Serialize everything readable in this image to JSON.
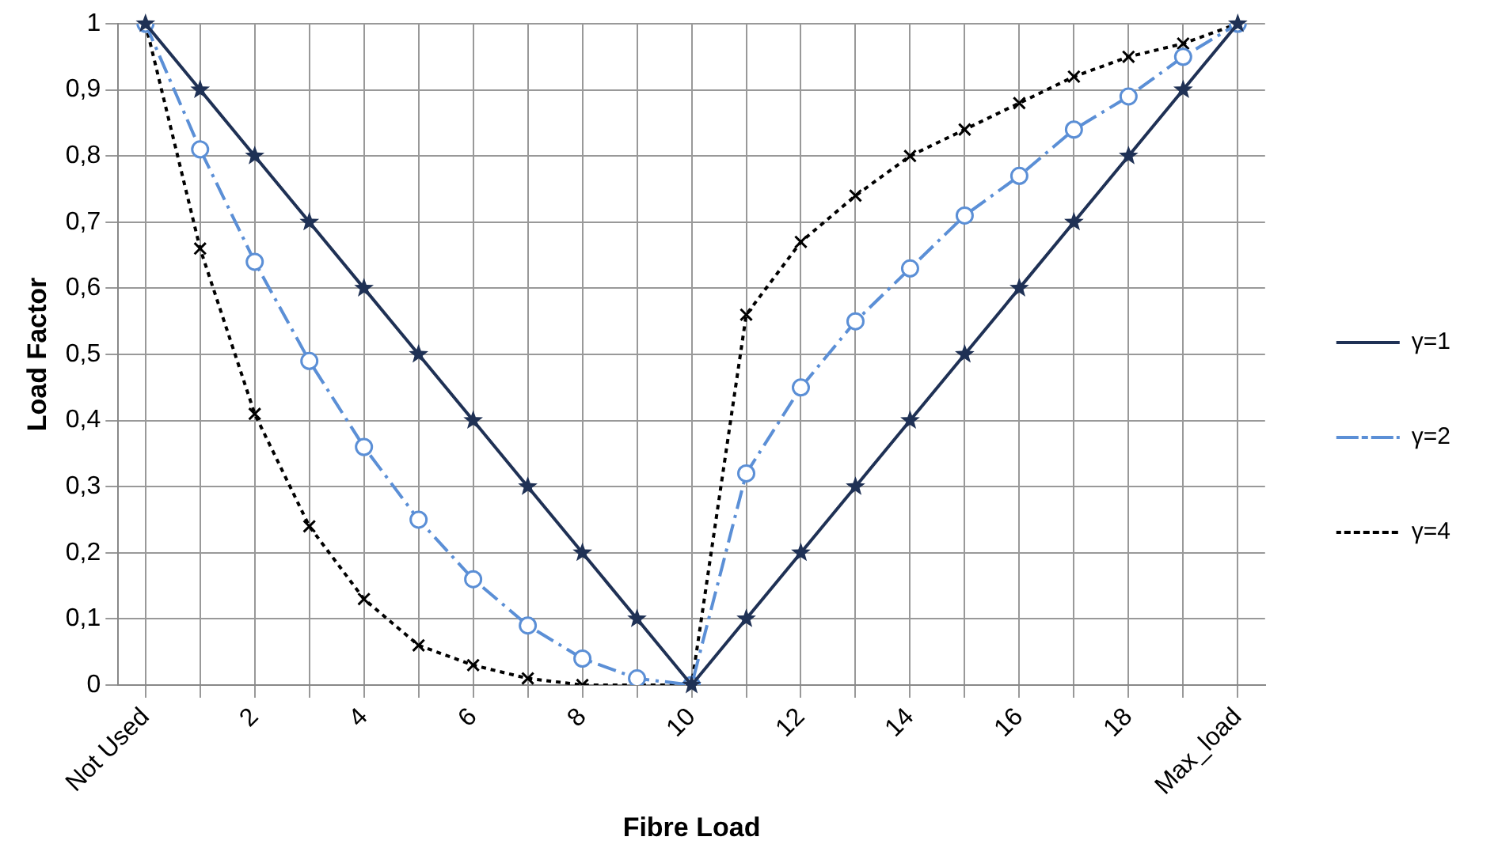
{
  "chart_data": {
    "type": "line",
    "xlabel": "Fibre Load",
    "ylabel": "Load Factor",
    "categories": [
      "Not Used",
      null,
      "2",
      null,
      "4",
      null,
      "6",
      null,
      "8",
      null,
      "10",
      null,
      "12",
      null,
      "14",
      null,
      "16",
      null,
      "18",
      null,
      "Max_load"
    ],
    "series": [
      {
        "name": "γ=1",
        "color": "#1f3155",
        "marker": "star",
        "line_style": "solid",
        "values": [
          1,
          0.9,
          0.8,
          0.7,
          0.6,
          0.5,
          0.4,
          0.3,
          0.2,
          0.1,
          0,
          0.1,
          0.2,
          0.3,
          0.4,
          0.5,
          0.6,
          0.7,
          0.8,
          0.9,
          1
        ]
      },
      {
        "name": "γ=2",
        "color": "#5b8fd6",
        "marker": "circle",
        "line_style": "dashdot",
        "values": [
          1,
          0.81,
          0.64,
          0.49,
          0.36,
          0.25,
          0.16,
          0.09,
          0.04,
          0.01,
          0,
          0.32,
          0.45,
          0.55,
          0.63,
          0.71,
          0.77,
          0.84,
          0.89,
          0.95,
          1
        ]
      },
      {
        "name": "γ=4",
        "color": "#000000",
        "marker": "cross",
        "line_style": "dotted",
        "values": [
          1,
          0.66,
          0.41,
          0.24,
          0.13,
          0.06,
          0.03,
          0.01,
          0,
          0,
          0,
          0.56,
          0.67,
          0.74,
          0.8,
          0.84,
          0.88,
          0.92,
          0.95,
          0.97,
          1
        ]
      }
    ],
    "ylim": [
      0,
      1
    ],
    "yticks": [
      0,
      {
        "value": 0.1,
        "label": "0,1"
      },
      {
        "value": 0.2,
        "label": "0,2"
      },
      {
        "value": 0.3,
        "label": "0,3"
      },
      {
        "value": 0.4,
        "label": "0,4"
      },
      {
        "value": 0.5,
        "label": "0,5"
      },
      {
        "value": 0.6,
        "label": "0,6"
      },
      {
        "value": 0.7,
        "label": "0,7"
      },
      {
        "value": 0.8,
        "label": "0,8"
      },
      {
        "value": 0.9,
        "label": "0,9"
      },
      1
    ],
    "grid": true,
    "legend": "right"
  }
}
